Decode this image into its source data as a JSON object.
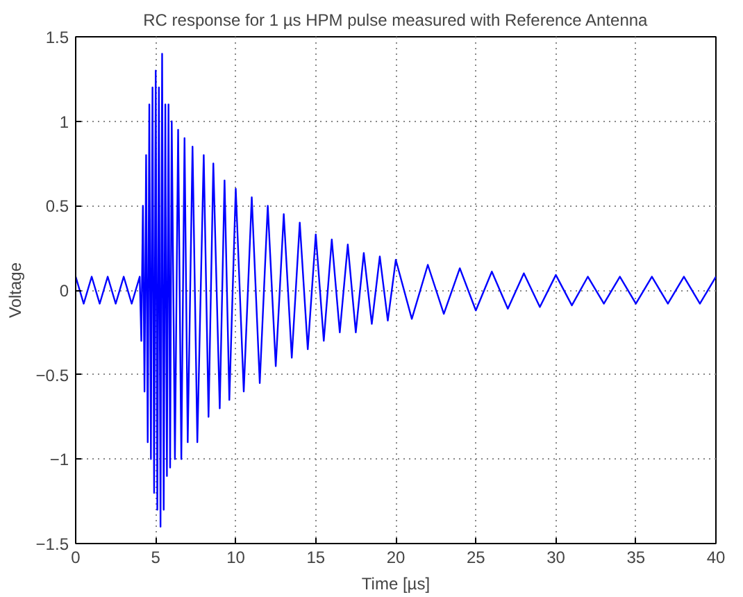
{
  "chart_data": {
    "type": "line",
    "title": "RC response for 1 µs HPM pulse measured with Reference Antenna",
    "xlabel": "Time [µs]",
    "ylabel": "Voltage",
    "x": [
      0,
      0.5,
      1,
      1.5,
      2,
      2.5,
      3,
      3.5,
      4,
      4.1,
      4.2,
      4.3,
      4.4,
      4.5,
      4.6,
      4.7,
      4.8,
      4.9,
      5,
      5.1,
      5.2,
      5.3,
      5.4,
      5.5,
      5.6,
      5.7,
      5.8,
      5.9,
      6,
      6.2,
      6.4,
      6.6,
      6.8,
      7,
      7.3,
      7.6,
      8,
      8.3,
      8.6,
      9,
      9.3,
      9.6,
      10,
      10.5,
      11,
      11.5,
      12,
      12.5,
      13,
      13.5,
      14,
      14.5,
      15,
      15.5,
      16,
      16.5,
      17,
      17.5,
      18,
      18.5,
      19,
      19.5,
      20,
      21,
      22,
      23,
      24,
      25,
      26,
      27,
      28,
      29,
      30,
      31,
      32,
      33,
      34,
      35,
      36,
      37,
      38,
      39,
      40
    ],
    "series": [
      {
        "color": "#0000ff",
        "values": [
          0.08,
          -0.08,
          0.08,
          -0.08,
          0.08,
          -0.08,
          0.08,
          -0.08,
          0.08,
          -0.3,
          0.5,
          -0.6,
          0.8,
          -0.9,
          1.1,
          -1.0,
          1.2,
          -1.2,
          1.3,
          -1.3,
          1.2,
          -1.4,
          1.4,
          -1.3,
          1.1,
          -1.1,
          1.1,
          -1.05,
          1.0,
          -1.0,
          0.95,
          -1.0,
          0.9,
          -0.9,
          0.85,
          -0.9,
          0.8,
          -0.75,
          0.75,
          -0.7,
          0.65,
          -0.65,
          0.6,
          -0.6,
          0.55,
          -0.55,
          0.5,
          -0.45,
          0.45,
          -0.4,
          0.4,
          -0.35,
          0.33,
          -0.3,
          0.3,
          -0.25,
          0.27,
          -0.25,
          0.22,
          -0.2,
          0.2,
          -0.18,
          0.18,
          -0.17,
          0.15,
          -0.14,
          0.13,
          -0.12,
          0.11,
          -0.11,
          0.1,
          -0.1,
          0.09,
          -0.09,
          0.08,
          -0.08,
          0.08,
          -0.08,
          0.08,
          -0.08,
          0.08,
          -0.08,
          0.08
        ]
      }
    ],
    "xlim": [
      0,
      40
    ],
    "ylim": [
      -1.5,
      1.5
    ],
    "xticks": [
      0,
      5,
      10,
      15,
      20,
      25,
      30,
      35,
      40
    ],
    "yticks": [
      -1.5,
      -1,
      -0.5,
      0,
      0.5,
      1,
      1.5
    ],
    "grid": true,
    "line_style": "solid",
    "marker": "none"
  }
}
